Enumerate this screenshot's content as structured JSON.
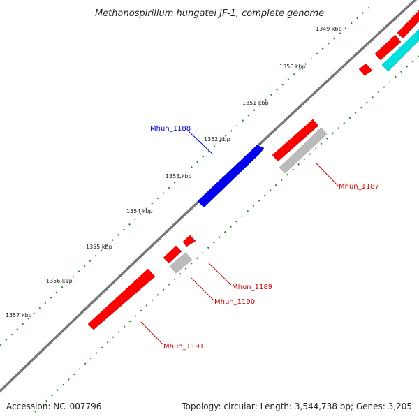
{
  "title": "Methanospirillum hungatei JF-1, complete genome",
  "ticks": [
    "1349 kbp",
    "1350 kbp",
    "1351 kbp",
    "1352 kbp",
    "1353 kbp",
    "1354 kbp",
    "1355 kbp",
    "1356 kbp",
    "1357 kbp"
  ],
  "genes": {
    "g1187": {
      "label": "Mhun_1187",
      "color": "#cc0000"
    },
    "g1188": {
      "label": "Mhun_1188",
      "color": "#0000cc"
    },
    "g1189": {
      "label": "Mhun_1189",
      "color": "#cc0000"
    },
    "g1190": {
      "label": "Mhun_1190",
      "color": "#cc0000"
    },
    "g1191": {
      "label": "Mhun_1191",
      "color": "#cc0000"
    }
  },
  "footer": {
    "accession": "Accession: NC_007796",
    "info": "Topology: circular; Length: 3,544,738 bp; Genes: 3,205"
  },
  "colors": {
    "backbone": "#777777",
    "tick_dots": "#228822",
    "cds_forward": "#0000ee",
    "cds_reverse": "#ff0000",
    "rna": "#bbbbbb",
    "other": "#00e0e0"
  }
}
